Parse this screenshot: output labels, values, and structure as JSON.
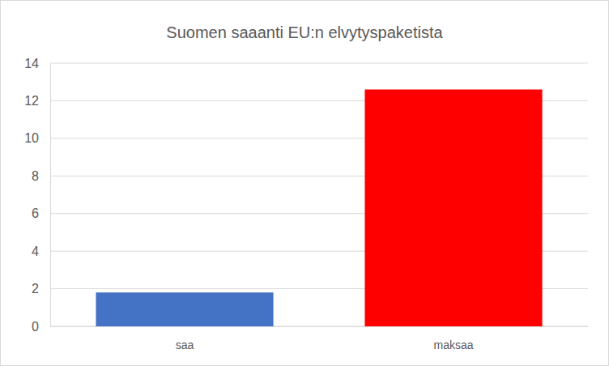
{
  "chart_data": {
    "type": "bar",
    "title": "Suomen saaanti EU:n elvytyspaketista",
    "categories": [
      "saa",
      "maksaa"
    ],
    "values": [
      1.8,
      12.6
    ],
    "colors": [
      "#4472c4",
      "#ff0000"
    ],
    "ylim": [
      0,
      14
    ],
    "yticks": [
      0,
      2,
      4,
      6,
      8,
      10,
      12,
      14
    ],
    "grid": true
  }
}
